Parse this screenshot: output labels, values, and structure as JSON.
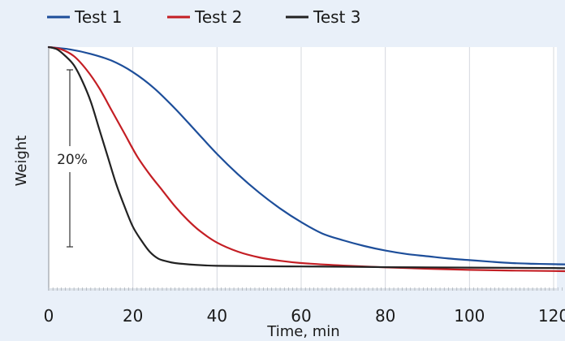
{
  "chart_data": {
    "type": "line",
    "xlabel": "Time, min",
    "ylabel": "Weight",
    "xlim": [
      0,
      125
    ],
    "ylim": [
      0,
      100
    ],
    "x_ticks": [
      0,
      20,
      40,
      60,
      80,
      100,
      120
    ],
    "grid": true,
    "legend_position": "top",
    "scale_bar_label": "20%",
    "series": [
      {
        "name": "Test 1",
        "color": "#1d4e9a",
        "x": [
          0,
          5,
          10,
          15,
          20,
          25,
          30,
          35,
          40,
          45,
          50,
          55,
          60,
          65,
          70,
          75,
          80,
          85,
          90,
          95,
          100,
          105,
          110,
          115,
          120,
          124
        ],
        "y": [
          100,
          99,
          97,
          94,
          89,
          82,
          73,
          63,
          53,
          44,
          36,
          29,
          23,
          18,
          15,
          12.5,
          10.5,
          9,
          8,
          7,
          6.3,
          5.6,
          5,
          4.7,
          4.5,
          4.4
        ]
      },
      {
        "name": "Test 2",
        "color": "#c41e24",
        "x": [
          0,
          3,
          6,
          9,
          12,
          15,
          18,
          21,
          24,
          27,
          30,
          33,
          36,
          40,
          45,
          50,
          55,
          60,
          70,
          80,
          90,
          100,
          110,
          120,
          124
        ],
        "y": [
          100,
          99,
          96,
          90,
          82,
          72,
          62,
          52,
          44,
          37,
          30,
          24,
          19,
          14,
          10,
          7.5,
          6,
          5,
          3.9,
          3.1,
          2.5,
          2,
          1.7,
          1.5,
          1.4
        ]
      },
      {
        "name": "Test 3",
        "color": "#222222",
        "x": [
          0,
          2,
          4,
          6,
          8,
          10,
          12,
          14,
          16,
          18,
          20,
          22,
          24,
          26,
          28,
          30,
          35,
          40,
          50,
          60,
          70,
          80,
          90,
          100,
          110,
          120,
          124
        ],
        "y": [
          100,
          99,
          96,
          92,
          85,
          76,
          64,
          52,
          40,
          30,
          21,
          15,
          10,
          7,
          5.8,
          5,
          4.2,
          3.8,
          3.6,
          3.5,
          3.4,
          3.2,
          3.1,
          3.0,
          2.9,
          2.8,
          2.7
        ]
      }
    ]
  }
}
